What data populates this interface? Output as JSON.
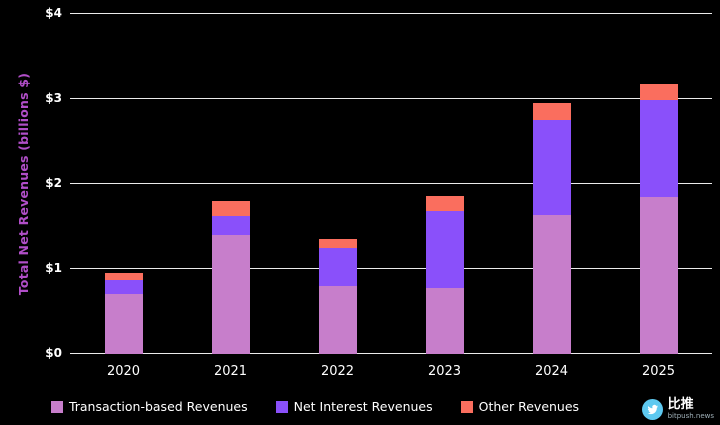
{
  "chart_data": {
    "type": "bar",
    "stacked": true,
    "title": "",
    "xlabel": "",
    "ylabel": "Total Net Revenues (billions $)",
    "ylabel_color": "#b14ec8",
    "ylim": [
      0,
      4
    ],
    "grid": "horizontal",
    "grid_color": "#ffffff",
    "legend_position": "bottom",
    "background_color": "#000000",
    "categories": [
      "2020",
      "2021",
      "2022",
      "2023",
      "2024",
      "2025"
    ],
    "series": [
      {
        "name": "Transaction-based Revenues",
        "color": "#c77ecb",
        "values": [
          0.71,
          1.4,
          0.8,
          0.78,
          1.64,
          1.85
        ]
      },
      {
        "name": "Net Interest Revenues",
        "color": "#8a50fa",
        "values": [
          0.16,
          0.22,
          0.45,
          0.9,
          1.11,
          1.14
        ]
      },
      {
        "name": "Other Revenues",
        "color": "#fa6e5e",
        "values": [
          0.08,
          0.18,
          0.1,
          0.18,
          0.2,
          0.19
        ]
      }
    ],
    "yticks": [
      {
        "value": 0,
        "label": "$0"
      },
      {
        "value": 1,
        "label": "$1"
      },
      {
        "value": 2,
        "label": "$2"
      },
      {
        "value": 3,
        "label": "$3"
      },
      {
        "value": 4,
        "label": "$4"
      }
    ]
  },
  "watermark": {
    "brand": "比推",
    "domain": "bitpush.news",
    "icon": "bird-icon",
    "icon_color": "#5ec9f0"
  }
}
